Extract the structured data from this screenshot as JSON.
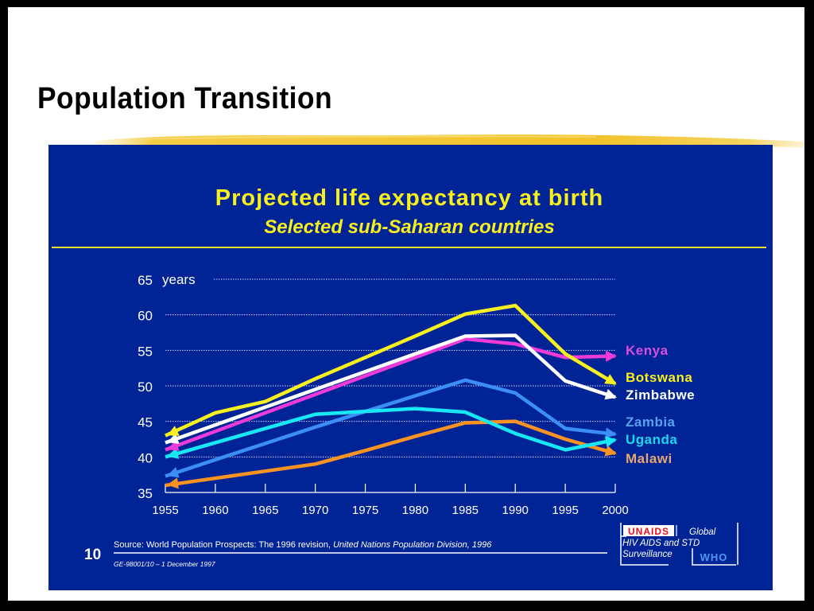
{
  "slide": {
    "title": "Population Transition",
    "page_number": "10",
    "source_prefix": "Source: World Population Prospects: The 1996 revision, ",
    "source_italic": "United Nations Population Division, 1996",
    "doc_ref": "GE-98001/10 – 1 December 1997",
    "logo": {
      "unaids": "UNAIDS",
      "line1": "Global",
      "line2": "HIV AIDS and STD",
      "line3": "Surveillance",
      "who": "WHO"
    },
    "colors": {
      "panel": "#002395",
      "accent_yellow": "#f8ec2e",
      "brush": "#f2c531"
    }
  },
  "chart_data": {
    "type": "line",
    "title": "Projected life expectancy at birth",
    "subtitle": "Selected sub-Saharan countries",
    "xlabel": "",
    "ylabel": "years",
    "x": [
      1955,
      1960,
      1965,
      1970,
      1975,
      1980,
      1985,
      1990,
      1995,
      2000
    ],
    "xticks": [
      "1955",
      "1960",
      "1965",
      "1970",
      "1975",
      "1980",
      "1985",
      "1990",
      "1995",
      "2000"
    ],
    "yticks": [
      "35",
      "40",
      "45",
      "50",
      "55",
      "60",
      "65"
    ],
    "ylim": [
      35,
      65
    ],
    "xlim": [
      1955,
      2000
    ],
    "grid": true,
    "legend": "right (labels at line ends)",
    "series": [
      {
        "name": "Kenya",
        "color": "#ee3ad8",
        "label_color": "#d84ee0",
        "values": [
          41.0,
          43.6,
          46.2,
          48.8,
          51.4,
          54.0,
          56.6,
          55.9,
          54.0,
          54.2
        ]
      },
      {
        "name": "Botswana",
        "color": "#f7ef1e",
        "label_color": "#f7ef1e",
        "values": [
          43.0,
          46.2,
          47.8,
          51.0,
          54.0,
          57.0,
          60.1,
          61.3,
          54.5,
          50.3
        ]
      },
      {
        "name": "Zimbabwe",
        "color": "#ffffff",
        "label_color": "#ffffff",
        "values": [
          42.0,
          44.5,
          47.0,
          49.5,
          52.0,
          54.5,
          57.0,
          57.1,
          50.7,
          48.4
        ]
      },
      {
        "name": "Zambia",
        "color": "#3a8ef6",
        "label_color": "#5aa2f0",
        "values": [
          37.3,
          39.6,
          41.9,
          44.2,
          46.4,
          48.6,
          50.8,
          49.0,
          44.0,
          43.2
        ]
      },
      {
        "name": "Uganda",
        "color": "#18e8f4",
        "label_color": "#18d8f0",
        "values": [
          40.0,
          42.0,
          44.0,
          46.0,
          46.4,
          46.8,
          46.3,
          43.3,
          41.0,
          42.4
        ]
      },
      {
        "name": "Malawi",
        "color": "#fb9323",
        "label_color": "#e8a871",
        "values": [
          36.0,
          37.0,
          38.0,
          39.0,
          40.9,
          42.9,
          44.8,
          45.0,
          42.5,
          40.5
        ]
      }
    ]
  }
}
